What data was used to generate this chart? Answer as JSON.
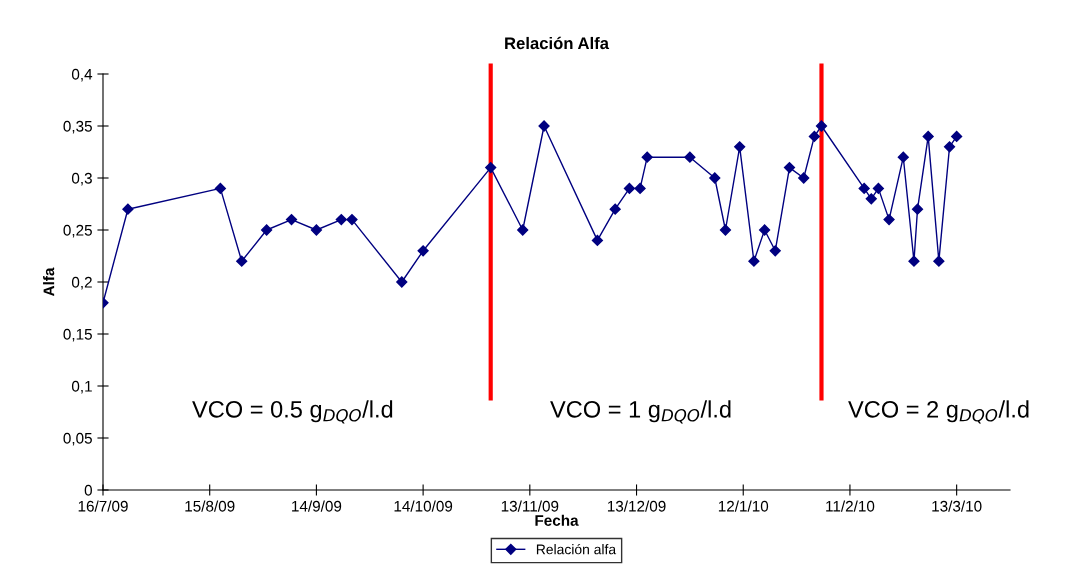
{
  "chart_data": {
    "type": "line",
    "title": "Relación Alfa",
    "xlabel": "Fecha",
    "ylabel": "Alfa",
    "x": [
      "2009-07-16",
      "2009-07-23",
      "2009-08-18",
      "2009-08-24",
      "2009-08-31",
      "2009-09-07",
      "2009-09-14",
      "2009-09-21",
      "2009-09-24",
      "2009-10-08",
      "2009-10-14",
      "2009-11-02",
      "2009-11-11",
      "2009-11-17",
      "2009-12-02",
      "2009-12-07",
      "2009-12-11",
      "2009-12-14",
      "2009-12-16",
      "2009-12-28",
      "2010-01-04",
      "2010-01-07",
      "2010-01-11",
      "2010-01-15",
      "2010-01-18",
      "2010-01-21",
      "2010-01-25",
      "2010-01-29",
      "2010-02-01",
      "2010-02-03",
      "2010-02-15",
      "2010-02-17",
      "2010-02-19",
      "2010-02-22",
      "2010-02-26",
      "2010-03-01",
      "2010-03-02",
      "2010-03-05",
      "2010-03-08",
      "2010-03-11",
      "2010-03-13"
    ],
    "series": [
      {
        "name": "Relación alfa",
        "color": "#000080",
        "values": [
          0.18,
          0.27,
          0.29,
          0.22,
          0.25,
          0.26,
          0.25,
          0.26,
          0.26,
          0.2,
          0.23,
          0.31,
          0.25,
          0.35,
          0.24,
          0.27,
          0.29,
          0.29,
          0.32,
          0.32,
          0.3,
          0.25,
          0.33,
          0.22,
          0.25,
          0.23,
          0.31,
          0.3,
          0.34,
          0.35,
          0.29,
          0.28,
          0.29,
          0.26,
          0.32,
          0.22,
          0.27,
          0.34,
          0.22,
          0.33,
          0.34
        ]
      }
    ],
    "xlim": [
      "2009-07-16",
      "2010-03-28"
    ],
    "xticks": [
      {
        "value": "2009-07-16",
        "label": "16/7/09"
      },
      {
        "value": "2009-08-15",
        "label": "15/8/09"
      },
      {
        "value": "2009-09-14",
        "label": "14/9/09"
      },
      {
        "value": "2009-10-14",
        "label": "14/10/09"
      },
      {
        "value": "2009-11-13",
        "label": "13/11/09"
      },
      {
        "value": "2009-12-13",
        "label": "13/12/09"
      },
      {
        "value": "2010-01-12",
        "label": "12/1/10"
      },
      {
        "value": "2010-02-11",
        "label": "11/2/10"
      },
      {
        "value": "2010-03-13",
        "label": "13/3/10"
      }
    ],
    "ylim": [
      0,
      0.4
    ],
    "yticks": [
      {
        "value": 0,
        "label": "0"
      },
      {
        "value": 0.05,
        "label": "0,05"
      },
      {
        "value": 0.1,
        "label": "0,1"
      },
      {
        "value": 0.15,
        "label": "0,15"
      },
      {
        "value": 0.2,
        "label": "0,2"
      },
      {
        "value": 0.25,
        "label": "0,25"
      },
      {
        "value": 0.3,
        "label": "0,3"
      },
      {
        "value": 0.35,
        "label": "0,35"
      },
      {
        "value": 0.4,
        "label": "0,4"
      }
    ],
    "ref_lines": [
      {
        "axis": "x",
        "value": "2009-11-02",
        "color": "#ff0000"
      },
      {
        "axis": "x",
        "value": "2010-02-03",
        "color": "#ff0000"
      }
    ],
    "annotations": [
      "VCO = 0.5 g$_{DQO}$/l.d",
      "VCO = 1 g$_{DQO}$/l.d",
      "VCO = 2 g$_{DQO}$/l.d"
    ],
    "marker": "diamond",
    "line_style": "solid",
    "grid": false,
    "legend": "bottom"
  }
}
